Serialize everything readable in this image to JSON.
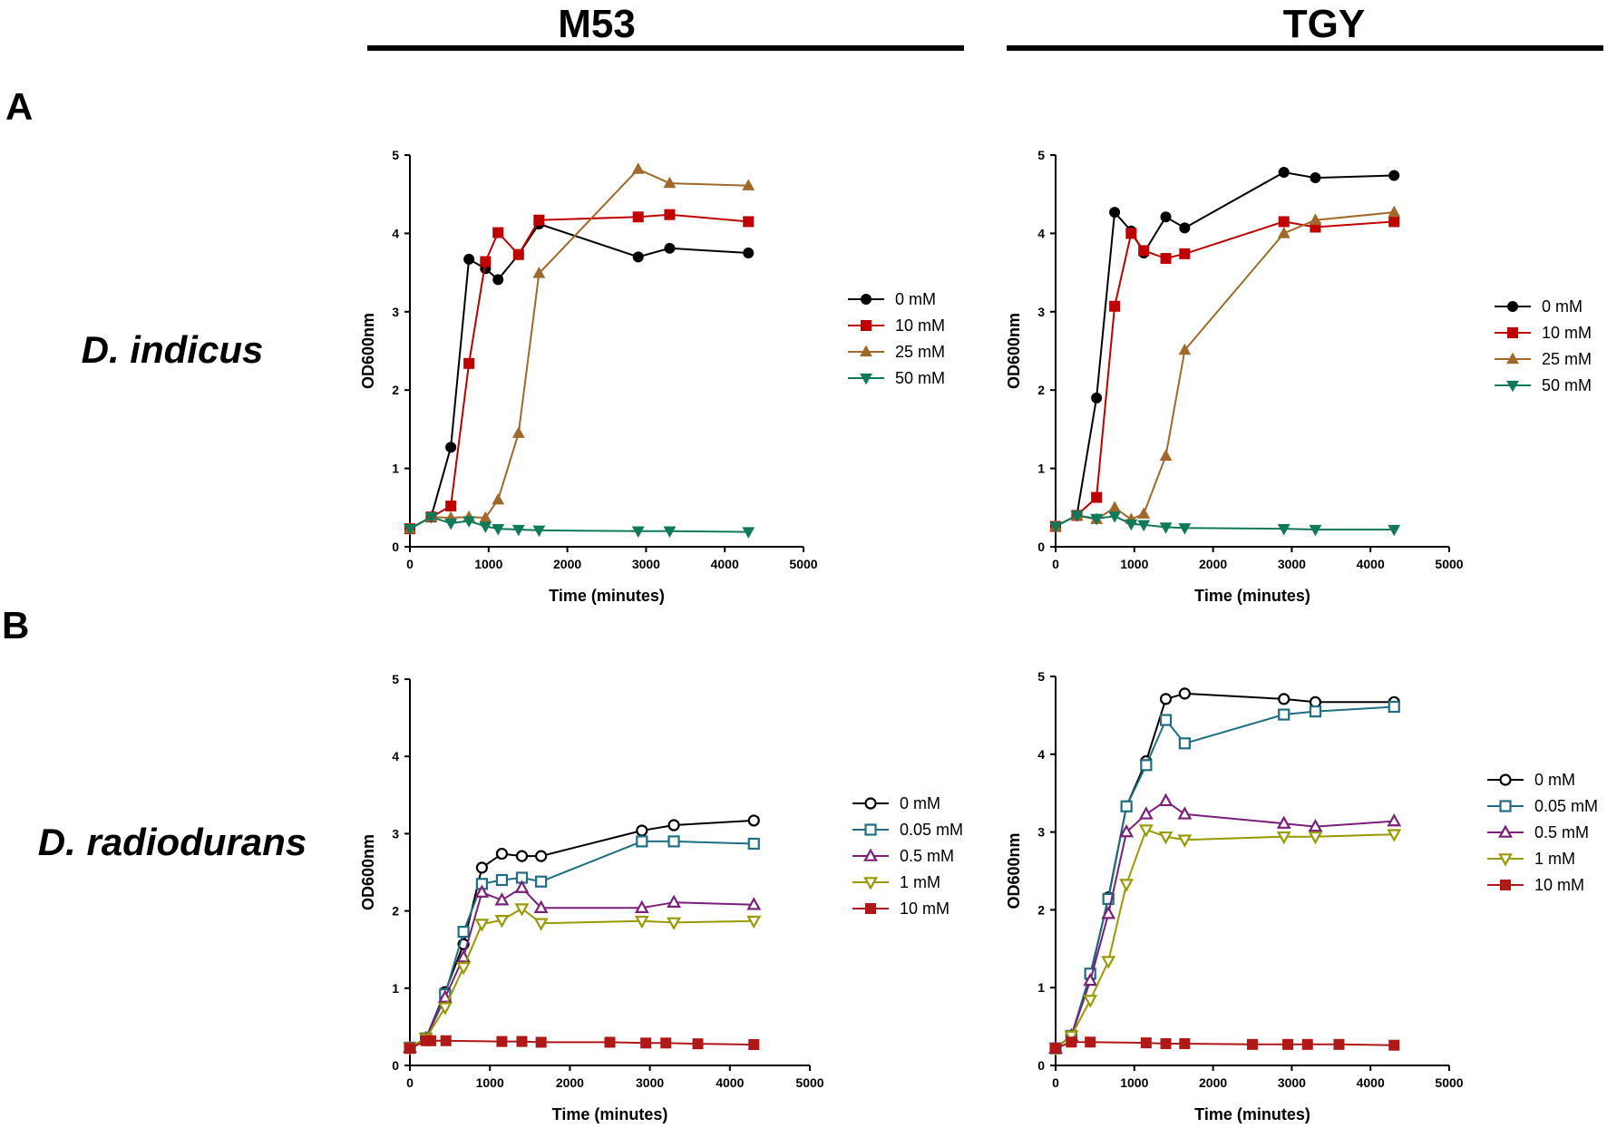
{
  "header": {
    "col1_title": "M53",
    "col2_title": "TGY"
  },
  "rows": {
    "a_label": "A",
    "b_label": "B",
    "a_species": "D. indicus",
    "b_species": "D. radiodurans"
  },
  "colors": {
    "black": "#000000",
    "red": "#c00000",
    "brown": "#a0692a",
    "green": "#0e7a5a",
    "teal": "#1f6e86",
    "purple": "#7a1f7a",
    "olive": "#9a9a00",
    "darkred": "#b01818"
  },
  "chart_data": [
    {
      "id": "A-M53",
      "type": "line",
      "xlabel": "Time (minutes)",
      "ylabel": "OD600nm",
      "xlim": [
        0,
        5000
      ],
      "ylim": [
        0,
        5
      ],
      "xticks": [
        "0",
        "1000",
        "2000",
        "3000",
        "4000",
        "5000"
      ],
      "yticks": [
        "0",
        "1",
        "2",
        "3",
        "4",
        "5"
      ],
      "legend_position": "right",
      "series": [
        {
          "name": "0 mM",
          "color": "black",
          "marker": "circle",
          "filled": true,
          "x": [
            0,
            270,
            520,
            750,
            960,
            1120,
            1380,
            1640,
            2900,
            3300,
            4300
          ],
          "y": [
            0.23,
            0.38,
            1.27,
            3.67,
            3.55,
            3.41,
            3.73,
            4.12,
            3.7,
            3.81,
            3.75
          ]
        },
        {
          "name": "10 mM",
          "color": "red",
          "marker": "square",
          "filled": true,
          "x": [
            0,
            270,
            520,
            750,
            960,
            1120,
            1380,
            1640,
            2900,
            3300,
            4300
          ],
          "y": [
            0.23,
            0.38,
            0.52,
            2.34,
            3.64,
            4.01,
            3.73,
            4.17,
            4.21,
            4.24,
            4.15
          ]
        },
        {
          "name": "25 mM",
          "color": "brown",
          "marker": "triangle-up",
          "filled": true,
          "x": [
            0,
            270,
            520,
            750,
            960,
            1120,
            1380,
            1640,
            2900,
            3300,
            4300
          ],
          "y": [
            0.23,
            0.38,
            0.37,
            0.38,
            0.37,
            0.6,
            1.45,
            3.49,
            4.82,
            4.64,
            4.61
          ]
        },
        {
          "name": "50 mM",
          "color": "green",
          "marker": "triangle-down",
          "filled": true,
          "x": [
            0,
            270,
            520,
            750,
            960,
            1120,
            1380,
            1640,
            2900,
            3300,
            4300
          ],
          "y": [
            0.23,
            0.38,
            0.3,
            0.33,
            0.26,
            0.23,
            0.22,
            0.21,
            0.2,
            0.2,
            0.19
          ]
        }
      ]
    },
    {
      "id": "A-TGY",
      "type": "line",
      "xlabel": "Time (minutes)",
      "ylabel": "OD600nm",
      "xlim": [
        0,
        5000
      ],
      "ylim": [
        0,
        5
      ],
      "xticks": [
        "0",
        "1000",
        "2000",
        "3000",
        "4000",
        "5000"
      ],
      "yticks": [
        "0",
        "1",
        "2",
        "3",
        "4",
        "5"
      ],
      "legend_position": "right",
      "series": [
        {
          "name": "0 mM",
          "color": "black",
          "marker": "circle",
          "filled": true,
          "x": [
            0,
            270,
            520,
            750,
            960,
            1120,
            1400,
            1640,
            2900,
            3300,
            4300
          ],
          "y": [
            0.26,
            0.4,
            1.9,
            4.27,
            4.03,
            3.75,
            4.21,
            4.07,
            4.78,
            4.71,
            4.74
          ]
        },
        {
          "name": "10 mM",
          "color": "red",
          "marker": "square",
          "filled": true,
          "x": [
            0,
            270,
            520,
            750,
            960,
            1120,
            1400,
            1640,
            2900,
            3300,
            4300
          ],
          "y": [
            0.26,
            0.4,
            0.63,
            3.07,
            4.0,
            3.78,
            3.68,
            3.74,
            4.15,
            4.08,
            4.15
          ]
        },
        {
          "name": "25 mM",
          "color": "brown",
          "marker": "triangle-up",
          "filled": true,
          "x": [
            0,
            270,
            520,
            750,
            960,
            1120,
            1400,
            1640,
            2900,
            3300,
            4300
          ],
          "y": [
            0.26,
            0.4,
            0.35,
            0.5,
            0.35,
            0.42,
            1.16,
            2.51,
            4.0,
            4.17,
            4.27
          ]
        },
        {
          "name": "50 mM",
          "color": "green",
          "marker": "triangle-down",
          "filled": true,
          "x": [
            0,
            270,
            520,
            750,
            960,
            1120,
            1400,
            1640,
            2900,
            3300,
            4300
          ],
          "y": [
            0.26,
            0.4,
            0.36,
            0.39,
            0.29,
            0.28,
            0.25,
            0.24,
            0.23,
            0.22,
            0.22
          ]
        }
      ]
    },
    {
      "id": "B-M53",
      "type": "line",
      "xlabel": "Time (minutes)",
      "ylabel": "OD600nm",
      "xlim": [
        0,
        5000
      ],
      "ylim": [
        0,
        5
      ],
      "xticks": [
        "0",
        "1000",
        "2000",
        "3000",
        "4000",
        "5000"
      ],
      "yticks": [
        "0",
        "1",
        "2",
        "3",
        "4",
        "5"
      ],
      "legend_position": "right",
      "series": [
        {
          "name": "0 mM",
          "color": "black",
          "marker": "circle",
          "filled": false,
          "x": [
            0,
            200,
            440,
            670,
            900,
            1150,
            1400,
            1640,
            2900,
            3300,
            4300
          ],
          "y": [
            0.23,
            0.35,
            0.95,
            1.57,
            2.56,
            2.74,
            2.71,
            2.71,
            3.04,
            3.11,
            3.17
          ]
        },
        {
          "name": "0.05 mM",
          "color": "teal",
          "marker": "square",
          "filled": false,
          "x": [
            0,
            200,
            440,
            670,
            900,
            1150,
            1400,
            1640,
            2900,
            3300,
            4300
          ],
          "y": [
            0.23,
            0.35,
            0.92,
            1.73,
            2.35,
            2.4,
            2.43,
            2.38,
            2.9,
            2.9,
            2.87
          ]
        },
        {
          "name": "0.5 mM",
          "color": "purple",
          "marker": "triangle-up",
          "filled": false,
          "x": [
            0,
            200,
            440,
            670,
            900,
            1150,
            1400,
            1640,
            2900,
            3300,
            4300
          ],
          "y": [
            0.23,
            0.35,
            0.88,
            1.4,
            2.24,
            2.14,
            2.3,
            2.04,
            2.04,
            2.11,
            2.08
          ]
        },
        {
          "name": "1 mM",
          "color": "olive",
          "marker": "triangle-down",
          "filled": false,
          "x": [
            0,
            200,
            440,
            670,
            900,
            1150,
            1400,
            1640,
            2900,
            3300,
            4300
          ],
          "y": [
            0.23,
            0.35,
            0.75,
            1.27,
            1.83,
            1.88,
            2.03,
            1.84,
            1.87,
            1.85,
            1.87
          ]
        },
        {
          "name": "10 mM",
          "color": "darkred",
          "marker": "square",
          "filled": true,
          "x": [
            0,
            200,
            260,
            450,
            1150,
            1400,
            1640,
            2500,
            2950,
            3200,
            3600,
            4300
          ],
          "y": [
            0.22,
            0.32,
            0.32,
            0.32,
            0.31,
            0.31,
            0.3,
            0.3,
            0.29,
            0.29,
            0.28,
            0.27
          ]
        }
      ]
    },
    {
      "id": "B-TGY",
      "type": "line",
      "xlabel": "Time (minutes)",
      "ylabel": "OD600nm",
      "xlim": [
        0,
        5000
      ],
      "ylim": [
        0,
        5
      ],
      "xticks": [
        "0",
        "1000",
        "2000",
        "3000",
        "4000",
        "5000"
      ],
      "yticks": [
        "0",
        "1",
        "2",
        "3",
        "4",
        "5"
      ],
      "legend_position": "right",
      "series": [
        {
          "name": "0 mM",
          "color": "black",
          "marker": "circle",
          "filled": false,
          "x": [
            0,
            200,
            440,
            670,
            900,
            1150,
            1400,
            1640,
            2900,
            3300,
            4300
          ],
          "y": [
            0.22,
            0.38,
            1.15,
            2.16,
            3.33,
            3.91,
            4.71,
            4.78,
            4.71,
            4.67,
            4.67
          ]
        },
        {
          "name": "0.05 mM",
          "color": "teal",
          "marker": "square",
          "filled": false,
          "x": [
            0,
            200,
            440,
            670,
            900,
            1150,
            1400,
            1640,
            2900,
            3300,
            4300
          ],
          "y": [
            0.22,
            0.38,
            1.18,
            2.14,
            3.33,
            3.86,
            4.44,
            4.14,
            4.51,
            4.55,
            4.61
          ]
        },
        {
          "name": "0.5 mM",
          "color": "purple",
          "marker": "triangle-up",
          "filled": false,
          "x": [
            0,
            200,
            440,
            670,
            900,
            1150,
            1400,
            1640,
            2900,
            3300,
            4300
          ],
          "y": [
            0.22,
            0.38,
            1.09,
            1.95,
            3.0,
            3.23,
            3.4,
            3.23,
            3.11,
            3.07,
            3.14
          ]
        },
        {
          "name": "1 mM",
          "color": "olive",
          "marker": "triangle-down",
          "filled": false,
          "x": [
            0,
            200,
            440,
            670,
            900,
            1150,
            1400,
            1640,
            2900,
            3300,
            4300
          ],
          "y": [
            0.22,
            0.38,
            0.84,
            1.34,
            2.33,
            3.03,
            2.94,
            2.9,
            2.94,
            2.94,
            2.97
          ]
        },
        {
          "name": "10 mM",
          "color": "darkred",
          "marker": "square",
          "filled": true,
          "x": [
            0,
            200,
            440,
            1150,
            1400,
            1640,
            2500,
            2950,
            3200,
            3600,
            4300
          ],
          "y": [
            0.22,
            0.3,
            0.3,
            0.29,
            0.28,
            0.28,
            0.27,
            0.27,
            0.27,
            0.27,
            0.26
          ]
        }
      ]
    }
  ]
}
